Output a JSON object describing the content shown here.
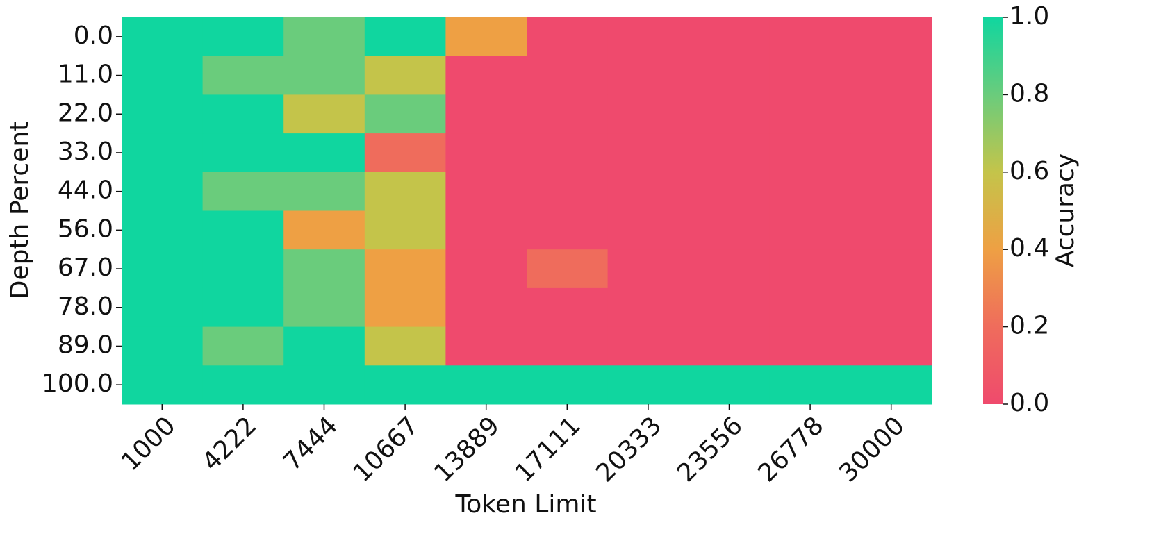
{
  "chart_data": {
    "type": "heatmap",
    "xlabel": "Token Limit",
    "ylabel": "Depth Percent",
    "colorbar_label": "Accuracy",
    "x_categories": [
      "1000",
      "4222",
      "7444",
      "10667",
      "13889",
      "17111",
      "20333",
      "23556",
      "26778",
      "30000"
    ],
    "y_categories": [
      "0.0",
      "11.0",
      "22.0",
      "33.0",
      "44.0",
      "56.0",
      "67.0",
      "78.0",
      "89.0",
      "100.0"
    ],
    "values": [
      [
        1.0,
        1.0,
        0.8,
        1.0,
        0.4,
        0.0,
        0.0,
        0.0,
        0.0,
        0.0
      ],
      [
        1.0,
        0.8,
        0.8,
        0.6,
        0.0,
        0.0,
        0.0,
        0.0,
        0.0,
        0.0
      ],
      [
        1.0,
        1.0,
        0.6,
        0.8,
        0.0,
        0.0,
        0.0,
        0.0,
        0.0,
        0.0
      ],
      [
        1.0,
        1.0,
        1.0,
        0.2,
        0.0,
        0.0,
        0.0,
        0.0,
        0.0,
        0.0
      ],
      [
        1.0,
        0.8,
        0.8,
        0.6,
        0.0,
        0.0,
        0.0,
        0.0,
        0.0,
        0.0
      ],
      [
        1.0,
        1.0,
        0.4,
        0.6,
        0.0,
        0.0,
        0.0,
        0.0,
        0.0,
        0.0
      ],
      [
        1.0,
        1.0,
        0.8,
        0.4,
        0.0,
        0.2,
        0.0,
        0.0,
        0.0,
        0.0
      ],
      [
        1.0,
        1.0,
        0.8,
        0.4,
        0.0,
        0.0,
        0.0,
        0.0,
        0.0,
        0.0
      ],
      [
        1.0,
        0.8,
        1.0,
        0.6,
        0.0,
        0.0,
        0.0,
        0.0,
        0.0,
        0.0
      ],
      [
        1.0,
        1.0,
        1.0,
        1.0,
        1.0,
        1.0,
        1.0,
        1.0,
        1.0,
        1.0
      ]
    ],
    "colormap": [
      "#ef4a6d",
      "#ef6c5c",
      "#eea044",
      "#c4c44a",
      "#6acc7c",
      "#10d69f"
    ],
    "clim": [
      0,
      1
    ],
    "cticks": [
      {
        "value": 0,
        "label": "0.0"
      },
      {
        "value": 0.2,
        "label": "0.2"
      },
      {
        "value": 0.4,
        "label": "0.4"
      },
      {
        "value": 0.6,
        "label": "0.6"
      },
      {
        "value": 0.8,
        "label": "0.8"
      },
      {
        "value": 1,
        "label": "1.0"
      }
    ]
  }
}
